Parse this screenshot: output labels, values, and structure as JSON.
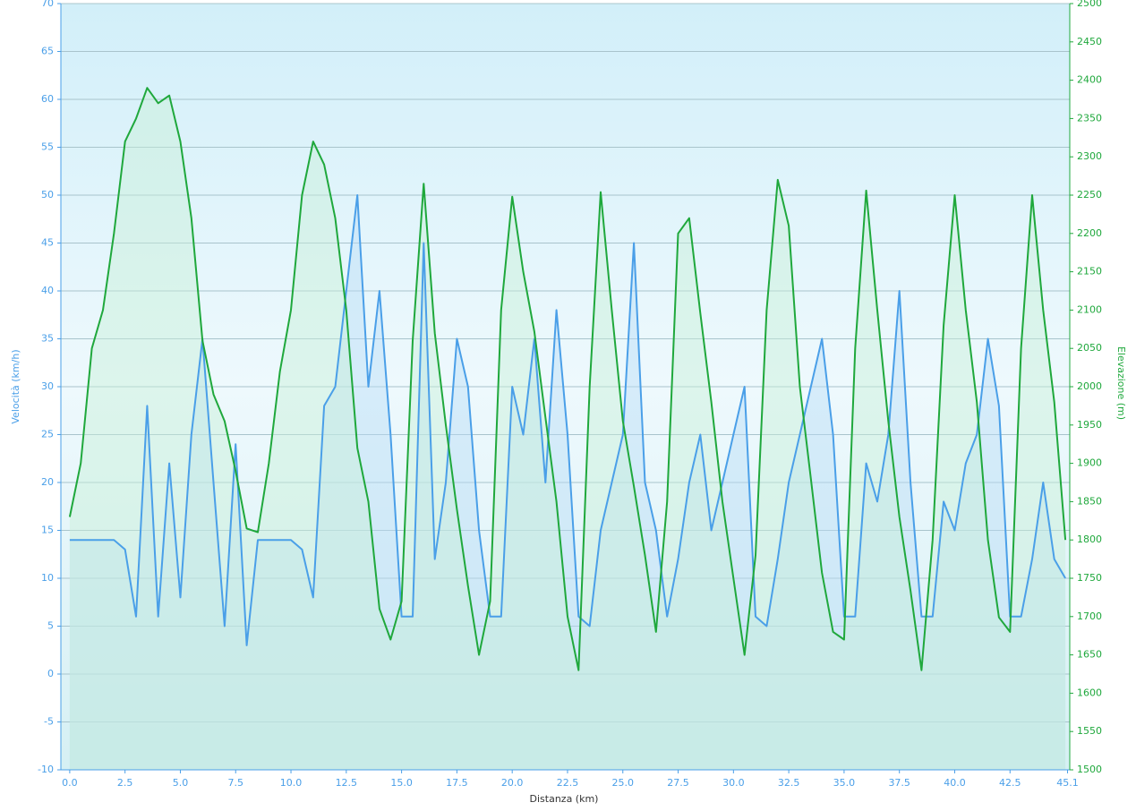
{
  "chart_data": {
    "type": "line",
    "xlabel": "Distanza  (km)",
    "ylabel": "Velocità (km/h)",
    "y2label": "Elevazione (m)",
    "x": [
      0,
      0.5,
      1,
      1.5,
      2,
      2.5,
      3,
      3.5,
      4,
      4.5,
      5,
      5.5,
      6,
      6.5,
      7,
      7.5,
      8,
      8.5,
      9,
      9.5,
      10,
      10.5,
      11,
      11.5,
      12,
      12.5,
      13,
      13.5,
      14,
      14.5,
      15,
      15.5,
      16,
      16.5,
      17,
      17.5,
      18,
      18.5,
      19,
      19.5,
      20,
      20.5,
      21,
      21.5,
      22,
      22.5,
      23,
      23.5,
      24,
      24.5,
      25,
      25.5,
      26,
      26.5,
      27,
      27.5,
      28,
      28.5,
      29,
      29.5,
      30,
      30.5,
      31,
      31.5,
      32,
      32.5,
      33,
      33.5,
      34,
      34.5,
      35,
      35.5,
      36,
      36.5,
      37,
      37.5,
      38,
      38.5,
      39,
      39.5,
      40,
      40.5,
      41,
      41.5,
      42,
      42.5,
      43,
      43.5,
      44,
      44.5,
      45
    ],
    "series": [
      {
        "name": "Velocità",
        "color": "#4a9fe8",
        "fill": "#b9dcf6",
        "axis": "y",
        "values": [
          14,
          14,
          14,
          14,
          14,
          13,
          6,
          28,
          6,
          22,
          8,
          25,
          35,
          20,
          5,
          24,
          3,
          14,
          14,
          14,
          14,
          13,
          8,
          28,
          30,
          40,
          50,
          30,
          40,
          25,
          6,
          6,
          45,
          12,
          20,
          35,
          30,
          15,
          6,
          6,
          30,
          25,
          35,
          20,
          38,
          25,
          6,
          5,
          15,
          20,
          25,
          45,
          20,
          15,
          6,
          12,
          20,
          25,
          15,
          20,
          25,
          30,
          6,
          5,
          12,
          20,
          25,
          30,
          35,
          25,
          6,
          6,
          22,
          18,
          25,
          40,
          20,
          6,
          6,
          18,
          15,
          22,
          25,
          35,
          28,
          6,
          6,
          12,
          20,
          12,
          10
        ]
      },
      {
        "name": "Elevazione",
        "color": "#1fa83c",
        "fill": "#c8f0d8",
        "axis": "y2",
        "values": [
          1830,
          1900,
          2050,
          2100,
          2200,
          2320,
          2350,
          2390,
          2370,
          2380,
          2320,
          2220,
          2060,
          1990,
          1955,
          1890,
          1815,
          1810,
          1900,
          2020,
          2100,
          2250,
          2320,
          2290,
          2220,
          2100,
          1920,
          1850,
          1710,
          1670,
          1720,
          2060,
          2265,
          2070,
          1950,
          1840,
          1740,
          1650,
          1720,
          2100,
          2248,
          2150,
          2072,
          1960,
          1850,
          1700,
          1630,
          2000,
          2254,
          2100,
          1955,
          1870,
          1780,
          1680,
          1850,
          2200,
          2220,
          2096,
          1980,
          1850,
          1750,
          1650,
          1780,
          2100,
          2270,
          2210,
          2000,
          1880,
          1757,
          1680,
          1670,
          2050,
          2256,
          2100,
          1955,
          1830,
          1734,
          1630,
          1800,
          2080,
          2250,
          2100,
          1980,
          1800,
          1699,
          1680,
          2050,
          2250,
          2100,
          1980,
          1800
        ]
      }
    ],
    "xlim": [
      -0.4,
      45.2
    ],
    "xticks": [
      {
        "value": 0,
        "label": "0.0"
      },
      2.5,
      {
        "value": 5,
        "label": "5.0"
      },
      7.5,
      {
        "value": 10,
        "label": "10.0"
      },
      12.5,
      {
        "value": 15,
        "label": "15.0"
      },
      17.5,
      {
        "value": 20,
        "label": "20.0"
      },
      22.5,
      {
        "value": 25,
        "label": "25.0"
      },
      27.5,
      {
        "value": 30,
        "label": "30.0"
      },
      32.5,
      {
        "value": 35,
        "label": "35.0"
      },
      37.5,
      {
        "value": 40,
        "label": "40.0"
      },
      42.5,
      45.1
    ],
    "ylim": [
      -10,
      70
    ],
    "yticks": [
      -10,
      -5,
      0,
      5,
      10,
      15,
      20,
      25,
      30,
      35,
      40,
      45,
      50,
      55,
      60,
      65,
      70
    ],
    "y2lim": [
      1500,
      2500
    ],
    "y2ticks": [
      1500,
      1550,
      1600,
      1650,
      1700,
      1750,
      1800,
      1850,
      1900,
      1950,
      2000,
      2050,
      2100,
      2150,
      2200,
      2250,
      2300,
      2350,
      2400,
      2450,
      2500
    ],
    "grid": true
  }
}
